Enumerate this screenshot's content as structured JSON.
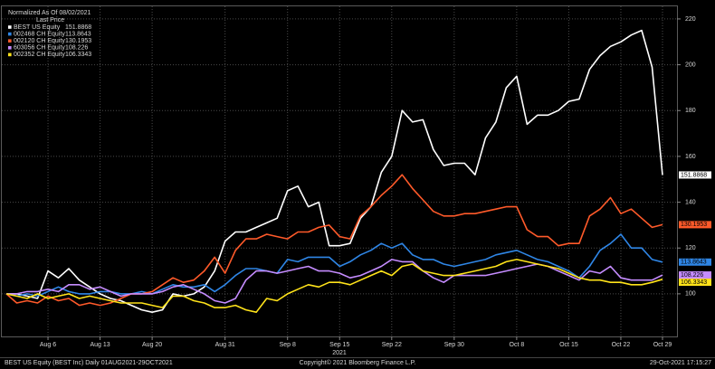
{
  "chart_data": {
    "type": "line",
    "title": "Normalized As Of 08/02/2021",
    "legend_title": "Last Price",
    "x_label": "2021",
    "footer_left": "BEST US Equity (BEST Inc)  Daily 01AUG2021-29OCT2021",
    "footer_center": "Copyright© 2021 Bloomberg Finance L.P.",
    "footer_right": "29-Oct-2021 17:15:27",
    "categories": [
      null,
      null,
      null,
      null,
      "Aug 6",
      null,
      null,
      null,
      null,
      "Aug 13",
      null,
      null,
      null,
      null,
      "Aug 20",
      null,
      null,
      null,
      null,
      null,
      null,
      "Aug 31",
      null,
      null,
      null,
      null,
      null,
      "Sep 8",
      null,
      null,
      null,
      null,
      "Sep 15",
      null,
      null,
      null,
      null,
      "Sep 22",
      null,
      null,
      null,
      null,
      null,
      "Sep 30",
      null,
      null,
      null,
      null,
      null,
      "Oct 8",
      null,
      null,
      null,
      null,
      "Oct 15",
      null,
      null,
      null,
      null,
      "Oct 22",
      null,
      null,
      null,
      "Oct 29"
    ],
    "ylim": [
      81.4,
      225.5
    ],
    "yticks": [
      100,
      120,
      140,
      160,
      180,
      200,
      220
    ],
    "grid": true,
    "legend": "upper left",
    "series": [
      {
        "name": "BEST US Equity",
        "color": "#ffffff",
        "values": [
          100,
          100,
          99,
          98,
          110,
          107,
          111,
          106,
          103,
          100,
          98,
          97,
          95,
          93,
          92,
          93,
          100,
          99,
          100,
          103,
          110,
          123,
          127,
          127,
          129,
          131,
          133,
          145,
          147,
          138,
          140,
          121,
          121,
          122,
          133,
          138,
          153,
          160,
          180,
          175,
          176,
          163,
          156,
          157,
          157,
          152,
          168,
          175,
          190,
          195,
          174,
          178,
          178,
          180,
          184,
          185,
          198,
          204,
          208,
          210,
          213,
          215,
          199,
          151.8868
        ]
      },
      {
        "name": "002468 CH Equity",
        "color": "#2f86e6",
        "values": [
          100,
          99,
          100,
          99,
          101,
          103,
          101,
          100,
          100,
          101,
          101,
          100,
          100,
          101,
          100,
          102,
          104,
          103,
          103,
          104,
          101,
          104,
          108,
          111,
          111,
          110,
          109,
          115,
          114,
          116,
          116,
          116,
          112,
          114,
          117,
          119,
          122,
          120,
          122,
          117,
          115,
          115,
          113,
          112,
          113,
          114,
          115,
          117,
          118,
          119,
          117,
          115,
          114,
          112,
          110,
          107,
          112,
          119,
          122,
          126,
          120,
          120,
          115,
          113.8643
        ]
      },
      {
        "name": "002120 CH Equity",
        "color": "#ff5a2a",
        "values": [
          100,
          96,
          97,
          96,
          99,
          97,
          98,
          95,
          96,
          95,
          96,
          98,
          100,
          100,
          101,
          104,
          107,
          105,
          106,
          110,
          116,
          109,
          119,
          124,
          124,
          126,
          125,
          124,
          127,
          127,
          129,
          130,
          125,
          124,
          134,
          138,
          143,
          147,
          152,
          146,
          141,
          136,
          134,
          134,
          135,
          135,
          136,
          137,
          138,
          138,
          128,
          125,
          125,
          121,
          122,
          122,
          134,
          137,
          142,
          135,
          137,
          133,
          129,
          130.1953
        ]
      },
      {
        "name": "603056 CH Equity",
        "color": "#c58cff",
        "values": [
          100,
          100,
          101,
          101,
          102,
          101,
          104,
          104,
          102,
          103,
          101,
          99,
          100,
          100,
          100,
          101,
          103,
          104,
          102,
          100,
          97,
          96,
          98,
          106,
          110,
          110,
          109,
          110,
          111,
          112,
          110,
          110,
          109,
          107,
          108,
          110,
          112,
          115,
          114,
          114,
          110,
          107,
          105,
          108,
          108,
          108,
          108,
          109,
          110,
          111,
          112,
          113,
          112,
          110,
          108,
          106,
          110,
          109,
          112,
          107,
          106,
          106,
          106,
          108.226
        ]
      },
      {
        "name": "002352 CH Equity",
        "color": "#ffe31a",
        "values": [
          100,
          99,
          98,
          100,
          98,
          99,
          100,
          98,
          99,
          98,
          97,
          96,
          96,
          96,
          95,
          94,
          99,
          99,
          97,
          96,
          94,
          94,
          95,
          93,
          92,
          98,
          97,
          100,
          102,
          104,
          103,
          105,
          105,
          104,
          106,
          108,
          110,
          108,
          112,
          113,
          110,
          109,
          108,
          108,
          109,
          110,
          111,
          112,
          114,
          115,
          114,
          113,
          112,
          111,
          109,
          107,
          106,
          106,
          105,
          105,
          104,
          104,
          105,
          106.3343
        ]
      }
    ]
  }
}
